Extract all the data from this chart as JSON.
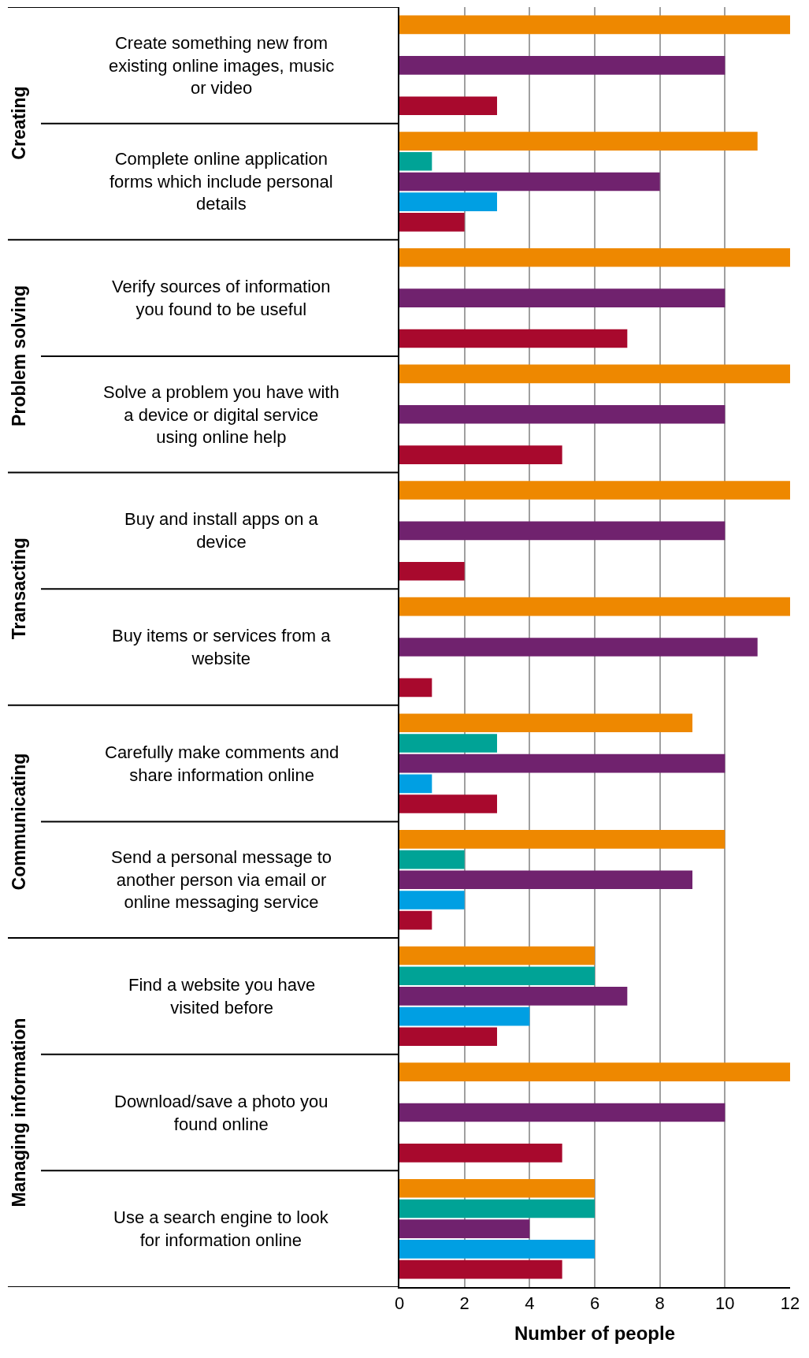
{
  "chart_data": {
    "type": "bar",
    "orientation": "horizontal",
    "xlabel": "Number of people",
    "categories": [
      "Create something new from existing online images, music or video",
      "Complete online application forms which include personal details",
      "Verify sources of information you found to be useful",
      "Solve a problem you have with a device or digital service using online help",
      "Buy and install apps on a device",
      "Buy items or services from a website",
      "Carefully make comments and share information online",
      "Send a personal message to another person via email or online messaging service",
      "Find a website you have visited before",
      "Download/save a photo you found online",
      "Use a search engine to look for information online"
    ],
    "series": [
      {
        "color": "#ee8800",
        "values": [
          12,
          11,
          12,
          12,
          12,
          12,
          9,
          10,
          6,
          12,
          6
        ]
      },
      {
        "color": "#00a396",
        "values": [
          null,
          1,
          null,
          null,
          null,
          null,
          3,
          2,
          6,
          null,
          6
        ]
      },
      {
        "color": "#70226e",
        "values": [
          10,
          8,
          10,
          10,
          10,
          11,
          10,
          9,
          7,
          10,
          4
        ]
      },
      {
        "color": "#009fe3",
        "values": [
          null,
          3,
          null,
          null,
          null,
          null,
          1,
          2,
          4,
          null,
          6
        ]
      },
      {
        "color": "#a8092d",
        "values": [
          3,
          2,
          7,
          5,
          2,
          1,
          3,
          1,
          3,
          5,
          5
        ]
      }
    ],
    "xlim": [
      0,
      12
    ],
    "xticks": [
      0,
      2,
      4,
      6,
      8,
      10,
      12
    ],
    "grid": "x",
    "annotations": [
      "Creating",
      "Problem solving",
      "Transacting",
      "Communicating",
      "Managing information"
    ]
  }
}
